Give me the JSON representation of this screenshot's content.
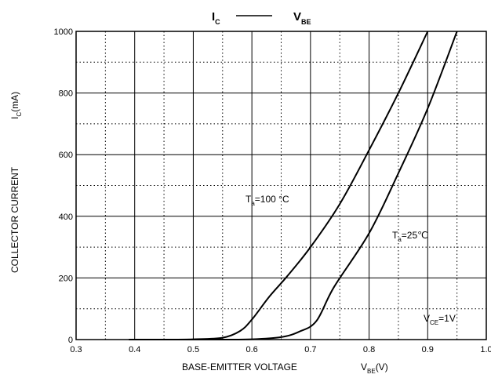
{
  "chart_data": {
    "type": "line",
    "title": {
      "left_main": "I",
      "left_sub": "C",
      "right_main": "V",
      "right_sub": "BE"
    },
    "xlabel": {
      "text": "BASE-EMITTER VOLTAGE",
      "unit_main": "V",
      "unit_sub": "BE",
      "unit_suffix": "(V)"
    },
    "ylabel": {
      "text": "COLLECTOR CURRENT",
      "unit_main": "I",
      "unit_sub": "C",
      "unit_suffix": "(mA)"
    },
    "xlim": [
      0.3,
      1.0
    ],
    "ylim": [
      0,
      1000
    ],
    "x_ticks": [
      "0.3",
      "0.4",
      "0.5",
      "0.6",
      "0.7",
      "0.8",
      "0.9",
      "1.0"
    ],
    "y_ticks": [
      "0",
      "200",
      "400",
      "600",
      "800",
      "1000"
    ],
    "grid": true,
    "annotations": {
      "ta100": {
        "main": "T",
        "sub": "a",
        "rest": "=100 °C"
      },
      "ta25": {
        "main": "T",
        "sub": "a",
        "rest": "=25℃"
      },
      "vce": {
        "main": "V",
        "sub": "CE",
        "rest": "=1V"
      }
    },
    "series": [
      {
        "values": [
          [
            0.39,
            0
          ],
          [
            0.45,
            0
          ],
          [
            0.5,
            1
          ],
          [
            0.55,
            6
          ],
          [
            0.58,
            28
          ],
          [
            0.6,
            65
          ],
          [
            0.63,
            140
          ],
          [
            0.66,
            205
          ],
          [
            0.7,
            300
          ],
          [
            0.75,
            440
          ],
          [
            0.8,
            615
          ],
          [
            0.85,
            800
          ],
          [
            0.9,
            1000
          ]
        ]
      },
      {
        "values": [
          [
            0.45,
            0
          ],
          [
            0.55,
            0
          ],
          [
            0.6,
            1
          ],
          [
            0.65,
            8
          ],
          [
            0.68,
            25
          ],
          [
            0.71,
            60
          ],
          [
            0.74,
            170
          ],
          [
            0.8,
            345
          ],
          [
            0.85,
            540
          ],
          [
            0.9,
            750
          ],
          [
            0.95,
            1000
          ]
        ]
      }
    ]
  }
}
